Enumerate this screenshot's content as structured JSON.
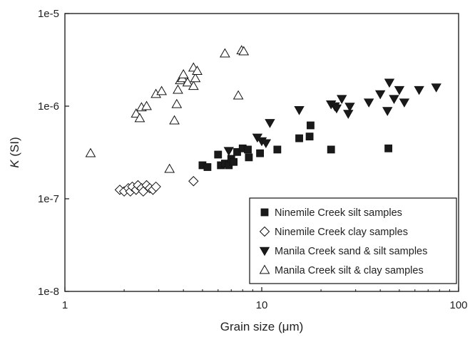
{
  "chart_data": {
    "type": "scatter",
    "title": "",
    "xlabel": "Grain size (μm)",
    "ylabel_italic": "K",
    "ylabel_rest": " (SI)",
    "x_scale": "log",
    "y_scale": "log",
    "xlim": [
      1,
      100
    ],
    "ylim": [
      1e-08,
      1e-05
    ],
    "x_ticks": [
      {
        "value": 1,
        "label": "1"
      },
      {
        "value": 10,
        "label": "10"
      },
      {
        "value": 100,
        "label": "100"
      }
    ],
    "y_ticks": [
      {
        "value": 1e-08,
        "label": "1e-8"
      },
      {
        "value": 1e-07,
        "label": "1e-7"
      },
      {
        "value": 1e-06,
        "label": "1e-6"
      },
      {
        "value": 1e-05,
        "label": "1e-5"
      }
    ],
    "grid": false,
    "legend_position": "bottom-right",
    "series": [
      {
        "name": "Ninemile Creek silt samples",
        "marker": "square-filled",
        "points": [
          [
            5.0,
            2.3e-07
          ],
          [
            5.3,
            2.2e-07
          ],
          [
            6.0,
            3e-07
          ],
          [
            6.2,
            2.3e-07
          ],
          [
            6.5,
            2.4e-07
          ],
          [
            6.8,
            2.3e-07
          ],
          [
            7.0,
            2.7e-07
          ],
          [
            7.2,
            2.5e-07
          ],
          [
            7.5,
            3.2e-07
          ],
          [
            8.0,
            3.5e-07
          ],
          [
            8.5,
            3.4e-07
          ],
          [
            8.6,
            2.8e-07
          ],
          [
            9.8,
            3.1e-07
          ],
          [
            12.0,
            3.4e-07
          ],
          [
            15.5,
            4.5e-07
          ],
          [
            17.5,
            4.7e-07
          ],
          [
            17.7,
            6.2e-07
          ],
          [
            22.5,
            3.4e-07
          ],
          [
            44.0,
            3.5e-07
          ]
        ]
      },
      {
        "name": "Ninemile Creek clay samples",
        "marker": "diamond-open",
        "points": [
          [
            1.9,
            1.25e-07
          ],
          [
            2.0,
            1.2e-07
          ],
          [
            2.1,
            1.3e-07
          ],
          [
            2.15,
            1.2e-07
          ],
          [
            2.2,
            1.35e-07
          ],
          [
            2.3,
            1.25e-07
          ],
          [
            2.35,
            1.4e-07
          ],
          [
            2.45,
            1.3e-07
          ],
          [
            2.5,
            1.2e-07
          ],
          [
            2.6,
            1.4e-07
          ],
          [
            2.7,
            1.3e-07
          ],
          [
            2.8,
            1.25e-07
          ],
          [
            2.9,
            1.35e-07
          ],
          [
            4.5,
            1.55e-07
          ]
        ]
      },
      {
        "name": "Manila Creek sand & silt samples",
        "marker": "triangle-down-filled",
        "points": [
          [
            6.8,
            3.3e-07
          ],
          [
            9.5,
            4.6e-07
          ],
          [
            10.0,
            4.2e-07
          ],
          [
            10.5,
            4e-07
          ],
          [
            11.0,
            6.6e-07
          ],
          [
            15.5,
            9.1e-07
          ],
          [
            22.5,
            1.05e-06
          ],
          [
            23.5,
            1e-06
          ],
          [
            24.0,
            9.5e-07
          ],
          [
            25.5,
            1.2e-06
          ],
          [
            27.5,
            8.3e-07
          ],
          [
            28.0,
            9.9e-07
          ],
          [
            35.0,
            1.1e-06
          ],
          [
            40.0,
            1.35e-06
          ],
          [
            43.5,
            8.9e-07
          ],
          [
            44.5,
            1.8e-06
          ],
          [
            47.0,
            1.2e-06
          ],
          [
            50.0,
            1.5e-06
          ],
          [
            53.0,
            1.1e-06
          ],
          [
            63.0,
            1.5e-06
          ],
          [
            77.0,
            1.6e-06
          ]
        ]
      },
      {
        "name": "Manila Creek silt & clay samples",
        "marker": "triangle-up-open",
        "points": [
          [
            1.35,
            3.1e-07
          ],
          [
            2.3,
            8.3e-07
          ],
          [
            2.4,
            7.4e-07
          ],
          [
            2.45,
            9.7e-07
          ],
          [
            2.6,
            1e-06
          ],
          [
            2.9,
            1.35e-06
          ],
          [
            3.1,
            1.45e-06
          ],
          [
            3.4,
            2.1e-07
          ],
          [
            3.6,
            7e-07
          ],
          [
            3.7,
            1.05e-06
          ],
          [
            3.75,
            1.5e-06
          ],
          [
            3.85,
            1.9e-06
          ],
          [
            3.95,
            2e-06
          ],
          [
            4.0,
            2.2e-06
          ],
          [
            4.2,
            1.8e-06
          ],
          [
            4.5,
            1.65e-06
          ],
          [
            4.5,
            2.6e-06
          ],
          [
            4.6,
            2e-06
          ],
          [
            4.7,
            2.4e-06
          ],
          [
            6.5,
            3.7e-06
          ],
          [
            7.6,
            1.3e-06
          ],
          [
            7.9,
            4e-06
          ],
          [
            8.1,
            3.9e-06
          ]
        ]
      }
    ]
  }
}
